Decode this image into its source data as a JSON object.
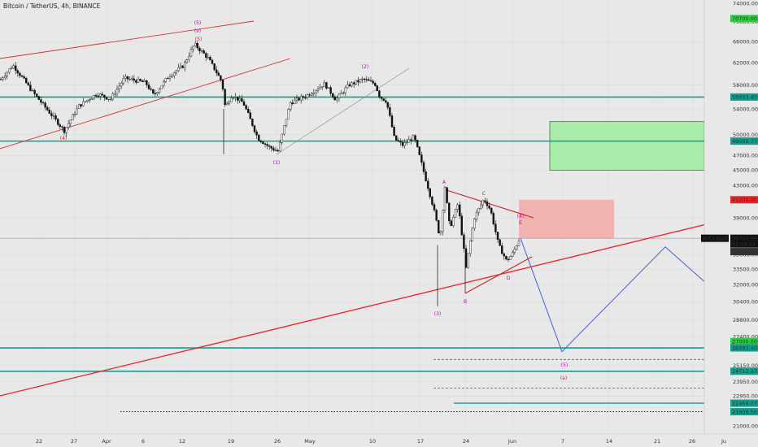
{
  "header": {
    "symbol_title": "Bitcoin / TetherUS, 4h, BINANCE"
  },
  "chart_data": {
    "type": "candlestick",
    "symbol": "BTCUSDT",
    "interval": "4h",
    "exchange": "BINANCE",
    "price_axis": {
      "scale": "log",
      "ticks": [
        74000,
        70000,
        66000,
        62000,
        58000,
        54000,
        50000,
        47000,
        45000,
        43000,
        39000,
        35000,
        33500,
        32000,
        30400,
        28800,
        27400,
        25150,
        23950,
        22950,
        21000
      ],
      "range": [
        20800,
        77000
      ]
    },
    "time_axis": {
      "ticks": [
        "22",
        "27",
        "Apr",
        "6",
        "12",
        "19",
        "26",
        "May",
        "10",
        "17",
        "24",
        "Jun",
        "7",
        "14",
        "21",
        "26",
        "Ju"
      ]
    },
    "current_price": {
      "label": "BTCUSDT",
      "price": "36730.99",
      "countdown": "01:19:14",
      "secondary": "36631.87"
    },
    "horizontal_levels": [
      {
        "price": 70700,
        "label": "70700.00",
        "color": "#2ecc40",
        "style": "label-only"
      },
      {
        "price": 55953.45,
        "label": "55953.45",
        "color": "#139d8c",
        "style": "solid"
      },
      {
        "price": 49066.77,
        "label": "49066.77",
        "color": "#139d8c",
        "style": "solid"
      },
      {
        "price": 41200,
        "label": "41200.00",
        "color": "#ee2222",
        "style": "label-only"
      },
      {
        "price": 27000,
        "label": "27000.00",
        "color": "#2ecc40",
        "style": "label-only"
      },
      {
        "price": 26493.4,
        "label": "26493.40",
        "color": "#139d8c",
        "style": "solid"
      },
      {
        "price": 24712.47,
        "label": "24712.47",
        "color": "#139d8c",
        "style": "solid"
      },
      {
        "price": 22469.07,
        "label": "22469.07",
        "color": "#139d8c",
        "style": "short"
      },
      {
        "price": 21906.58,
        "label": "21906.58",
        "color": "#139d8c",
        "style": "dotted"
      }
    ],
    "wave_labels": {
      "big5": "(5)",
      "big5_sub": "(v)",
      "big5_small": "(5)",
      "w4": "(4)",
      "w1": "(1)",
      "w2": "(2)",
      "w3": "(3)",
      "wA": "A",
      "wB": "B",
      "wC": "C",
      "wD": "D",
      "wE": "E",
      "w4b": "(4)",
      "w5b": "(5)",
      "wa": "(a)"
    },
    "zones": [
      {
        "name": "target-zone-upper",
        "from": 45000,
        "to": 52000,
        "color": "#90ee90"
      },
      {
        "name": "stop-zone",
        "from": 36731,
        "to": 41200,
        "color": "#f4a0a0"
      },
      {
        "name": "profit-zone",
        "from": 27000,
        "to": 36731,
        "color": "#a8e0a0"
      }
    ],
    "projection_path_prices": [
      36731,
      26200,
      35800,
      30200
    ]
  }
}
